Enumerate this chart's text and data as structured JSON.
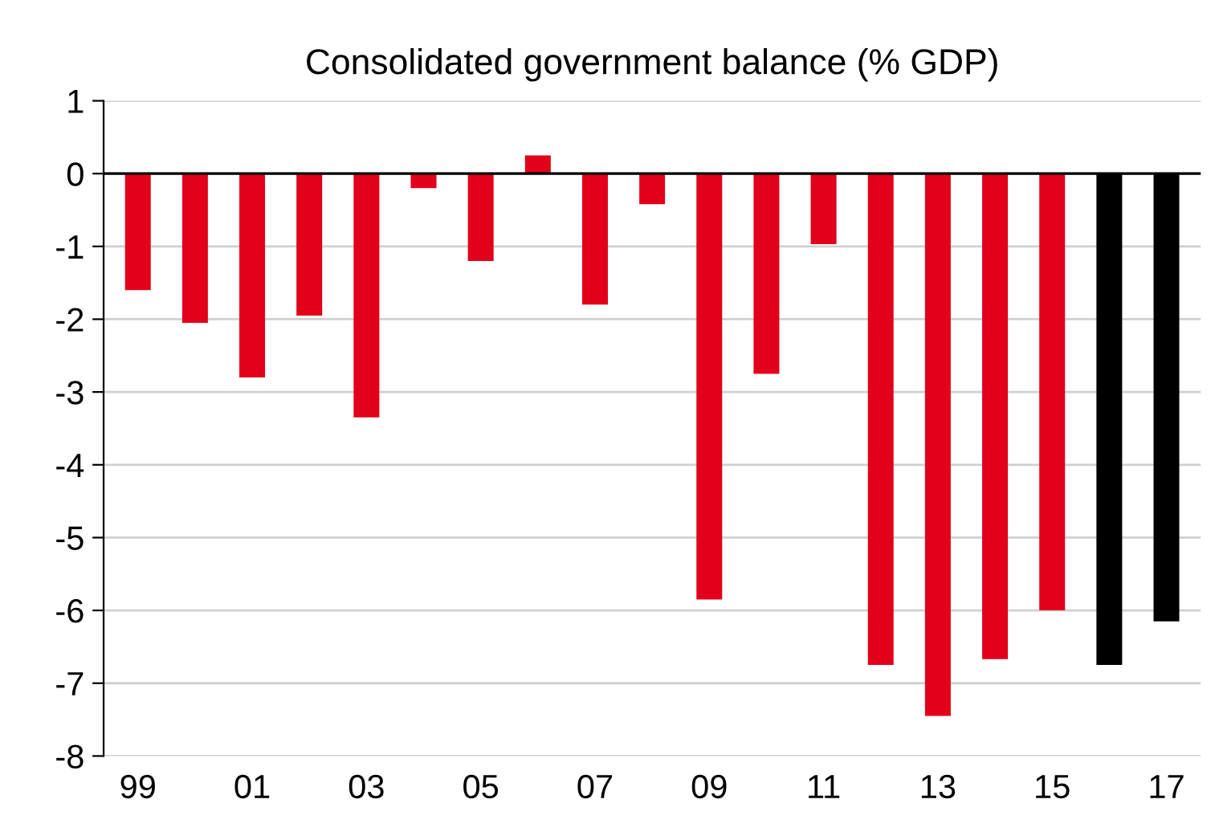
{
  "chart_data": {
    "type": "bar",
    "title": "Consolidated government balance (% GDP)",
    "categories": [
      "99",
      null,
      "01",
      null,
      "03",
      null,
      "05",
      null,
      "07",
      null,
      "09",
      null,
      "11",
      null,
      "13",
      null,
      "15",
      null,
      "17"
    ],
    "values": [
      -1.6,
      -2.05,
      -2.8,
      -1.95,
      -3.35,
      -0.2,
      -1.2,
      0.25,
      -1.8,
      -0.42,
      -5.85,
      -2.75,
      -0.97,
      -6.75,
      -7.45,
      -6.67,
      -6.0,
      -6.75,
      -6.15
    ],
    "colors": [
      "#e2001a",
      "#e2001a",
      "#e2001a",
      "#e2001a",
      "#e2001a",
      "#e2001a",
      "#e2001a",
      "#e2001a",
      "#e2001a",
      "#e2001a",
      "#e2001a",
      "#e2001a",
      "#e2001a",
      "#e2001a",
      "#e2001a",
      "#e2001a",
      "#e2001a",
      "#000000",
      "#000000"
    ],
    "ylim": [
      -8,
      1
    ],
    "yticks": [
      -8,
      -7,
      -6,
      -5,
      -4,
      -3,
      -2,
      -1,
      0,
      1
    ],
    "grid": "y",
    "ref_lines": [
      {
        "axis": "y",
        "value": 0,
        "color": "#000000"
      }
    ]
  }
}
